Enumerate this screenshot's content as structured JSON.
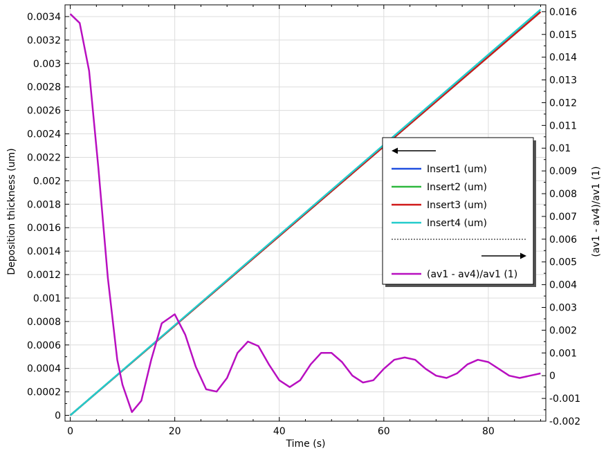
{
  "chart_data": {
    "type": "line",
    "title": "",
    "xlabel": "Time (s)",
    "ylabel": "Deposition thickness (um)",
    "y2label": "(av1 - av4)/av1 (1)",
    "xlim": [
      -1,
      91
    ],
    "ylim": [
      -5e-05,
      0.0035
    ],
    "y2lim": [
      -0.002,
      0.0163
    ],
    "grid": true,
    "legend_placement": "center-right",
    "x_ticks": [
      "0",
      "20",
      "40",
      "60",
      "80"
    ],
    "y_ticks": [
      "0",
      "0.0002",
      "0.0004",
      "0.0006",
      "0.0008",
      "0.001",
      "0.0012",
      "0.0014",
      "0.0016",
      "0.0018",
      "0.002",
      "0.0022",
      "0.0024",
      "0.0026",
      "0.0028",
      "0.003",
      "0.0032",
      "0.0034"
    ],
    "y2_ticks": [
      "-0.002",
      "-0.001",
      "0",
      "0.001",
      "0.002",
      "0.003",
      "0.004",
      "0.005",
      "0.006",
      "0.007",
      "0.008",
      "0.009",
      "0.01",
      "0.011",
      "0.012",
      "0.013",
      "0.014",
      "0.015",
      "0.016"
    ],
    "series": [
      {
        "name": "Insert1 (um)",
        "axis": "left",
        "color": "#1f4fe0",
        "x": [
          0,
          90
        ],
        "y": [
          0,
          0.00344
        ]
      },
      {
        "name": "Insert2 (um)",
        "axis": "left",
        "color": "#2db83d",
        "x": [
          0,
          90
        ],
        "y": [
          0,
          0.00344
        ]
      },
      {
        "name": "Insert3 (um)",
        "axis": "left",
        "color": "#d01818",
        "x": [
          0,
          90
        ],
        "y": [
          0,
          0.00344
        ]
      },
      {
        "name": "Insert4 (um)",
        "axis": "left",
        "color": "#22cccc",
        "x": [
          0,
          90
        ],
        "y": [
          0,
          0.00346
        ]
      },
      {
        "name": "(av1 - av4)/av1 (1)",
        "axis": "right",
        "color": "#b80fc0",
        "x": [
          0,
          1.8,
          3.6,
          5.4,
          7.2,
          9,
          10,
          11.8,
          13.6,
          15.5,
          17.5,
          20,
          22,
          24,
          26,
          28,
          30,
          32,
          34,
          36,
          38,
          40,
          42,
          44,
          46,
          48,
          50,
          52,
          54,
          56,
          58,
          60,
          62,
          64,
          66,
          68,
          70,
          72,
          74,
          76,
          78,
          80,
          82,
          84,
          86,
          88,
          90
        ],
        "y": [
          0.0159,
          0.0155,
          0.0134,
          0.0091,
          0.0043,
          0.0007,
          -0.0004,
          -0.0016,
          -0.0011,
          0.0007,
          0.0023,
          0.0027,
          0.0018,
          0.0004,
          -0.0006,
          -0.0007,
          -0.0001,
          0.001,
          0.0015,
          0.0013,
          0.0005,
          -0.0002,
          -0.0005,
          -0.0002,
          0.0005,
          0.001,
          0.001,
          0.0006,
          0,
          -0.0003,
          -0.0002,
          0.0003,
          0.0007,
          0.0008,
          0.0007,
          0.0003,
          0,
          -0.0001,
          0.0001,
          0.0005,
          0.0007,
          0.0006,
          0.0003,
          0,
          -0.0001,
          0,
          0.0001
        ]
      }
    ]
  }
}
